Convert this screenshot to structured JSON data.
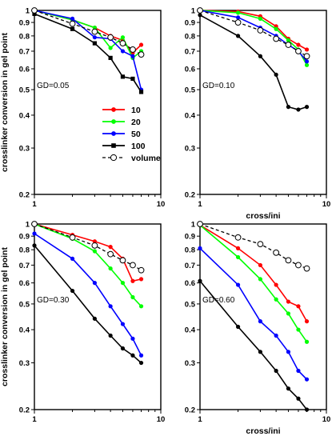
{
  "figure": {
    "ylabel": "crosslinker conversion in gel point",
    "xlabel": "cross/ini"
  },
  "legend": {
    "items": [
      {
        "label": "10",
        "color": "#ff0000",
        "marker": "circle",
        "dash": false
      },
      {
        "label": "20",
        "color": "#00ff00",
        "marker": "circle",
        "dash": false
      },
      {
        "label": "50",
        "color": "#0000ff",
        "marker": "circle",
        "dash": false
      },
      {
        "label": "100",
        "color": "#000000",
        "marker": "square",
        "dash": false
      },
      {
        "label": "volume",
        "color": "#000000",
        "marker": "open-circle",
        "dash": true
      }
    ]
  },
  "chart_data": [
    {
      "type": "line",
      "annotation": "GD=0.05",
      "xscale": "log",
      "yscale": "log",
      "xlim": [
        1,
        10
      ],
      "ylim": [
        0.2,
        1
      ],
      "xticks": [
        "1",
        "10"
      ],
      "yticks": [
        "0.2",
        "0.3",
        "0.4",
        "0.5",
        "0.6",
        "0.7",
        "0.8",
        "0.9",
        "1"
      ],
      "xlabel": "",
      "ylabel": "crosslinker conversion in gel point",
      "series": [
        {
          "name": "10",
          "color": "#ff0000",
          "marker": "circle",
          "x": [
            1,
            2,
            3,
            4,
            5,
            6,
            7
          ],
          "y": [
            1.0,
            0.92,
            0.86,
            0.8,
            0.77,
            0.69,
            0.74
          ]
        },
        {
          "name": "20",
          "color": "#00ff00",
          "marker": "circle",
          "x": [
            1,
            2,
            3,
            4,
            5,
            6,
            7
          ],
          "y": [
            1.0,
            0.92,
            0.86,
            0.72,
            0.79,
            0.66,
            0.7
          ]
        },
        {
          "name": "50",
          "color": "#0000ff",
          "marker": "circle",
          "x": [
            1,
            2,
            3,
            4,
            5,
            6,
            7
          ],
          "y": [
            1.0,
            0.93,
            0.79,
            0.78,
            0.7,
            0.67,
            0.5
          ]
        },
        {
          "name": "100",
          "color": "#000000",
          "marker": "square",
          "x": [
            1,
            2,
            3,
            4,
            5,
            6,
            7
          ],
          "y": [
            0.97,
            0.85,
            0.75,
            0.66,
            0.56,
            0.55,
            0.49
          ]
        },
        {
          "name": "volume",
          "color": "#000000",
          "marker": "open-circle",
          "dash": true,
          "x": [
            1,
            2,
            3,
            4,
            5,
            6,
            7
          ],
          "y": [
            1.0,
            0.89,
            0.83,
            0.79,
            0.75,
            0.71,
            0.68
          ]
        }
      ]
    },
    {
      "type": "line",
      "annotation": "GD=0.10",
      "xscale": "log",
      "yscale": "log",
      "xlim": [
        1,
        10
      ],
      "ylim": [
        0.2,
        1
      ],
      "xticks": [
        "1",
        "10"
      ],
      "yticks": [
        "0.2",
        "0.3",
        "0.4",
        "0.5",
        "0.6",
        "0.7",
        "0.8",
        "0.9",
        "1"
      ],
      "xlabel": "cross/ini",
      "ylabel": "",
      "series": [
        {
          "name": "10",
          "color": "#ff0000",
          "marker": "circle",
          "x": [
            1,
            2,
            3,
            4,
            5,
            6,
            7
          ],
          "y": [
            1.0,
            0.99,
            0.95,
            0.87,
            0.78,
            0.74,
            0.71
          ]
        },
        {
          "name": "20",
          "color": "#00ff00",
          "marker": "circle",
          "x": [
            1,
            2,
            3,
            4,
            5,
            6,
            7
          ],
          "y": [
            1.0,
            0.98,
            0.93,
            0.85,
            0.77,
            0.71,
            0.62
          ]
        },
        {
          "name": "50",
          "color": "#0000ff",
          "marker": "circle",
          "x": [
            1,
            2,
            3,
            4,
            5,
            6,
            7
          ],
          "y": [
            1.0,
            0.94,
            0.86,
            0.8,
            0.74,
            0.7,
            0.64
          ]
        },
        {
          "name": "100",
          "color": "#000000",
          "marker": "circle",
          "x": [
            1,
            2,
            3,
            4,
            5,
            6,
            7
          ],
          "y": [
            0.96,
            0.8,
            0.67,
            0.57,
            0.43,
            0.42,
            0.43
          ]
        },
        {
          "name": "volume",
          "color": "#000000",
          "marker": "open-circle",
          "dash": true,
          "x": [
            1,
            2,
            3,
            4,
            5,
            6,
            7
          ],
          "y": [
            1.0,
            0.9,
            0.84,
            0.78,
            0.74,
            0.7,
            0.67
          ]
        }
      ]
    },
    {
      "type": "line",
      "annotation": "GD=0.30",
      "xscale": "log",
      "yscale": "log",
      "xlim": [
        1,
        10
      ],
      "ylim": [
        0.2,
        1
      ],
      "xticks": [
        "1",
        "10"
      ],
      "yticks": [
        "0.2",
        "0.3",
        "0.4",
        "0.5",
        "0.6",
        "0.7",
        "0.8",
        "0.9",
        "1"
      ],
      "xlabel": "",
      "ylabel": "crosslinker conversion in gel point",
      "series": [
        {
          "name": "10",
          "color": "#ff0000",
          "marker": "circle",
          "x": [
            1,
            2,
            3,
            4,
            5,
            6,
            7
          ],
          "y": [
            1.0,
            0.91,
            0.86,
            0.82,
            0.74,
            0.61,
            0.62
          ]
        },
        {
          "name": "20",
          "color": "#00ff00",
          "marker": "circle",
          "x": [
            1,
            2,
            3,
            4,
            5,
            6,
            7
          ],
          "y": [
            1.0,
            0.88,
            0.79,
            0.68,
            0.6,
            0.53,
            0.49
          ]
        },
        {
          "name": "50",
          "color": "#0000ff",
          "marker": "circle",
          "x": [
            1,
            2,
            3,
            4,
            5,
            6,
            7
          ],
          "y": [
            0.92,
            0.74,
            0.6,
            0.49,
            0.42,
            0.37,
            0.32
          ]
        },
        {
          "name": "100",
          "color": "#000000",
          "marker": "circle",
          "x": [
            1,
            2,
            3,
            4,
            5,
            6,
            7
          ],
          "y": [
            0.83,
            0.56,
            0.44,
            0.38,
            0.34,
            0.32,
            0.3
          ]
        },
        {
          "name": "volume",
          "color": "#000000",
          "marker": "open-circle",
          "dash": true,
          "x": [
            1,
            2,
            3,
            4,
            5,
            6,
            7
          ],
          "y": [
            1.0,
            0.89,
            0.83,
            0.77,
            0.73,
            0.7,
            0.67
          ]
        }
      ]
    },
    {
      "type": "line",
      "annotation": "GD=0.60",
      "xscale": "log",
      "yscale": "log",
      "xlim": [
        1,
        10
      ],
      "ylim": [
        0.2,
        1
      ],
      "xticks": [
        "1",
        "10"
      ],
      "yticks": [
        "0.2",
        "0.3",
        "0.4",
        "0.5",
        "0.6",
        "0.7",
        "0.8",
        "0.9",
        "1"
      ],
      "xlabel": "cross/ini",
      "ylabel": "",
      "series": [
        {
          "name": "10",
          "color": "#ff0000",
          "marker": "circle",
          "x": [
            1,
            2,
            3,
            4,
            5,
            6,
            7
          ],
          "y": [
            0.99,
            0.81,
            0.7,
            0.59,
            0.51,
            0.49,
            0.43
          ]
        },
        {
          "name": "20",
          "color": "#00ff00",
          "marker": "circle",
          "x": [
            1,
            2,
            3,
            4,
            5,
            6,
            7
          ],
          "y": [
            0.99,
            0.75,
            0.62,
            0.52,
            0.46,
            0.4,
            0.36
          ]
        },
        {
          "name": "50",
          "color": "#0000ff",
          "marker": "circle",
          "x": [
            1,
            2,
            3,
            4,
            5,
            6,
            7
          ],
          "y": [
            0.81,
            0.59,
            0.43,
            0.38,
            0.33,
            0.28,
            0.26
          ]
        },
        {
          "name": "100",
          "color": "#000000",
          "marker": "circle",
          "x": [
            1,
            2,
            3,
            4,
            5,
            6,
            7
          ],
          "y": [
            0.61,
            0.41,
            0.33,
            0.28,
            0.24,
            0.22,
            0.2
          ]
        },
        {
          "name": "volume",
          "color": "#000000",
          "marker": "open-circle",
          "dash": true,
          "x": [
            1,
            2,
            3,
            4,
            5,
            6,
            7
          ],
          "y": [
            1.0,
            0.89,
            0.84,
            0.78,
            0.73,
            0.7,
            0.68
          ]
        }
      ]
    }
  ]
}
